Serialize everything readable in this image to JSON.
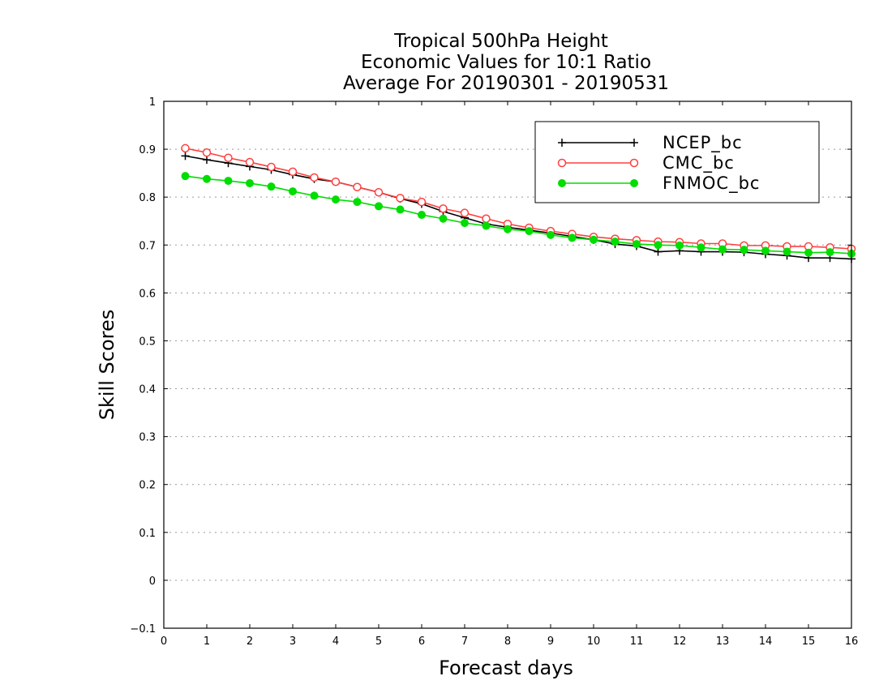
{
  "chart_data": {
    "type": "line",
    "title": [
      "Tropical 500hPa Height",
      "Economic Values for 10:1 Ratio",
      "Average For 20190301 - 20190531"
    ],
    "xlabel": "Forecast days",
    "ylabel": "Skill Scores",
    "xlim": [
      0,
      16
    ],
    "ylim": [
      -0.1,
      1
    ],
    "xticks": [
      "0",
      "1",
      "2",
      "3",
      "4",
      "5",
      "6",
      "7",
      "8",
      "9",
      "10",
      "11",
      "12",
      "13",
      "14",
      "15",
      "16"
    ],
    "yticks": [
      "−0.1",
      "0",
      "0.1",
      "0.2",
      "0.3",
      "0.4",
      "0.5",
      "0.6",
      "0.7",
      "0.8",
      "0.9",
      "1"
    ],
    "grid": "dotted horizontal",
    "legend_position": "top-right",
    "x": [
      0.5,
      1,
      1.5,
      2,
      2.5,
      3,
      3.5,
      4,
      4.5,
      5,
      5.5,
      6,
      6.5,
      7,
      7.5,
      8,
      8.5,
      9,
      9.5,
      10,
      10.5,
      11,
      11.5,
      12,
      12.5,
      13,
      13.5,
      14,
      14.5,
      15,
      15.5,
      16
    ],
    "series": [
      {
        "name": "NCEP_bc",
        "color": "#000000",
        "marker": "plus",
        "values": [
          0.886,
          0.878,
          0.871,
          0.864,
          0.857,
          0.847,
          0.838,
          0.832,
          0.821,
          0.81,
          0.797,
          0.786,
          0.77,
          0.757,
          0.744,
          0.737,
          0.731,
          0.725,
          0.718,
          0.711,
          0.702,
          0.698,
          0.686,
          0.688,
          0.686,
          0.686,
          0.685,
          0.681,
          0.678,
          0.673,
          0.673,
          0.671
        ]
      },
      {
        "name": "CMC_bc",
        "color": "#ff4040",
        "marker": "open-circle",
        "values": [
          0.902,
          0.893,
          0.882,
          0.873,
          0.863,
          0.853,
          0.841,
          0.832,
          0.821,
          0.81,
          0.798,
          0.79,
          0.776,
          0.767,
          0.755,
          0.744,
          0.736,
          0.729,
          0.723,
          0.717,
          0.713,
          0.71,
          0.707,
          0.706,
          0.703,
          0.703,
          0.699,
          0.699,
          0.697,
          0.697,
          0.695,
          0.692
        ]
      },
      {
        "name": "FNMOC_bc",
        "color": "#00dd00",
        "marker": "filled-circle",
        "values": [
          0.844,
          0.838,
          0.834,
          0.829,
          0.822,
          0.812,
          0.803,
          0.795,
          0.79,
          0.781,
          0.774,
          0.763,
          0.755,
          0.746,
          0.74,
          0.733,
          0.729,
          0.721,
          0.715,
          0.711,
          0.707,
          0.702,
          0.7,
          0.699,
          0.695,
          0.691,
          0.69,
          0.688,
          0.686,
          0.684,
          0.685,
          0.682
        ]
      }
    ]
  }
}
